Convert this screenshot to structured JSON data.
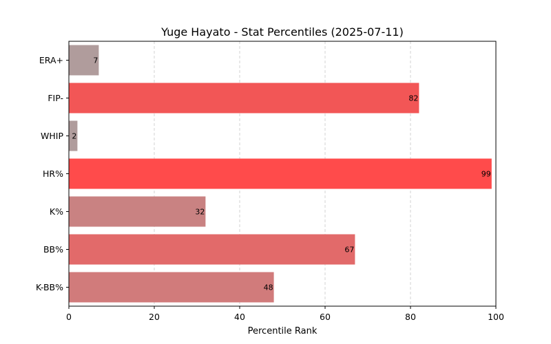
{
  "chart_data": {
    "type": "bar",
    "orientation": "horizontal",
    "title": "Yuge Hayato - Stat Percentiles (2025-07-11)",
    "xlabel": "Percentile Rank",
    "ylabel": "",
    "xlim": [
      0,
      100
    ],
    "xticks": [
      0,
      20,
      40,
      60,
      80,
      100
    ],
    "grid": "x-dashed",
    "categories": [
      "ERA+",
      "FIP-",
      "WHIP",
      "HR%",
      "K%",
      "BB%",
      "K-BB%"
    ],
    "values": [
      7,
      82,
      2,
      99,
      32,
      67,
      48
    ],
    "data_labels": [
      "7",
      "82",
      "2",
      "99",
      "32",
      "67",
      "48"
    ],
    "colors": [
      "#b09c9c",
      "#f25656",
      "#b09c9c",
      "#ff4b4b",
      "#c98282",
      "#e26a6a",
      "#d17b7b"
    ]
  }
}
